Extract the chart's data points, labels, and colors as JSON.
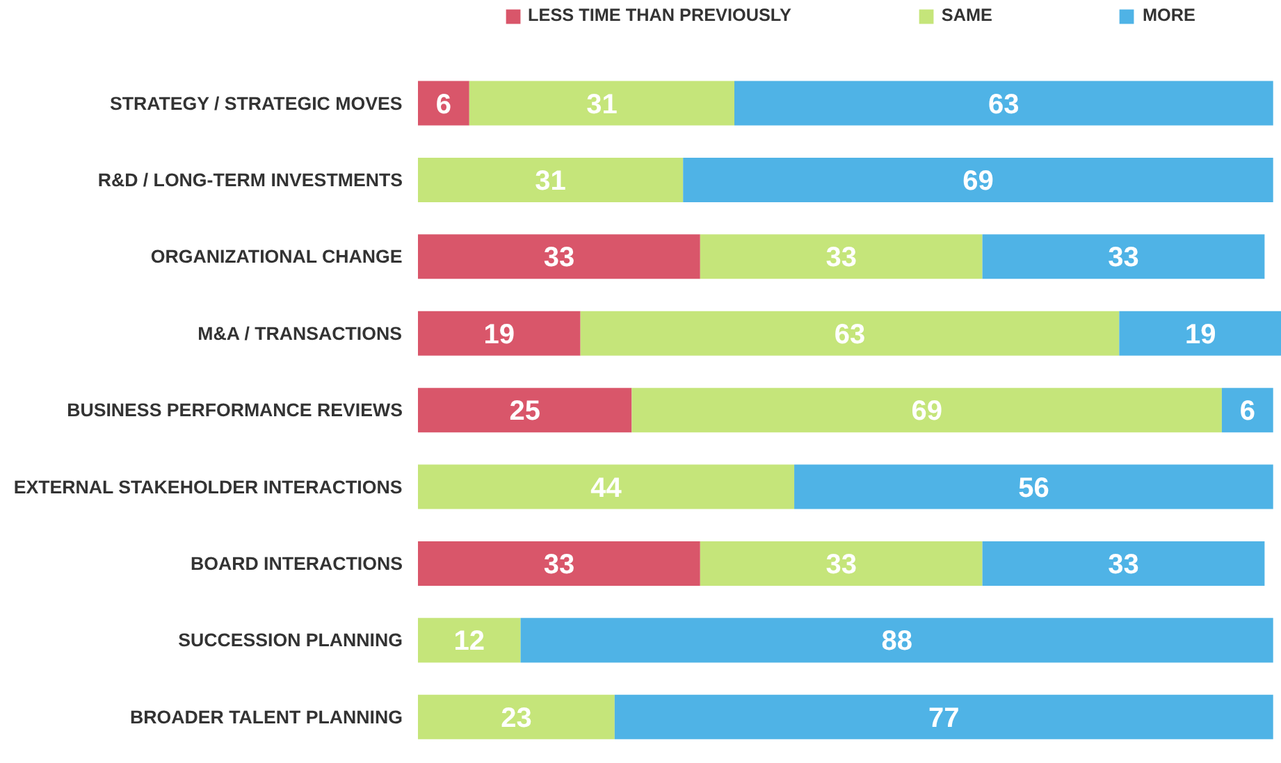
{
  "chart_data": {
    "type": "bar",
    "orientation": "horizontal",
    "stacked": true,
    "data_labels": true,
    "legend": "top",
    "grid": false,
    "categories": [
      "STRATEGY / STRATEGIC MOVES",
      "R&D / LONG-TERM INVESTMENTS",
      "ORGANIZATIONAL CHANGE",
      "M&A / TRANSACTIONS",
      "BUSINESS PERFORMANCE REVIEWS",
      "EXTERNAL STAKEHOLDER INTERACTIONS",
      "BOARD INTERACTIONS",
      "SUCCESSION PLANNING",
      "BROADER TALENT PLANNING"
    ],
    "series": [
      {
        "name": "LESS TIME THAN PREVIOUSLY",
        "color": "#d9566a",
        "values": [
          6,
          null,
          33,
          19,
          25,
          null,
          33,
          null,
          null
        ]
      },
      {
        "name": "SAME",
        "color": "#c5e57a",
        "values": [
          31,
          31,
          33,
          63,
          69,
          44,
          33,
          12,
          23
        ]
      },
      {
        "name": "MORE",
        "color": "#4fb3e6",
        "values": [
          63,
          69,
          33,
          19,
          6,
          56,
          33,
          88,
          77
        ]
      }
    ]
  }
}
